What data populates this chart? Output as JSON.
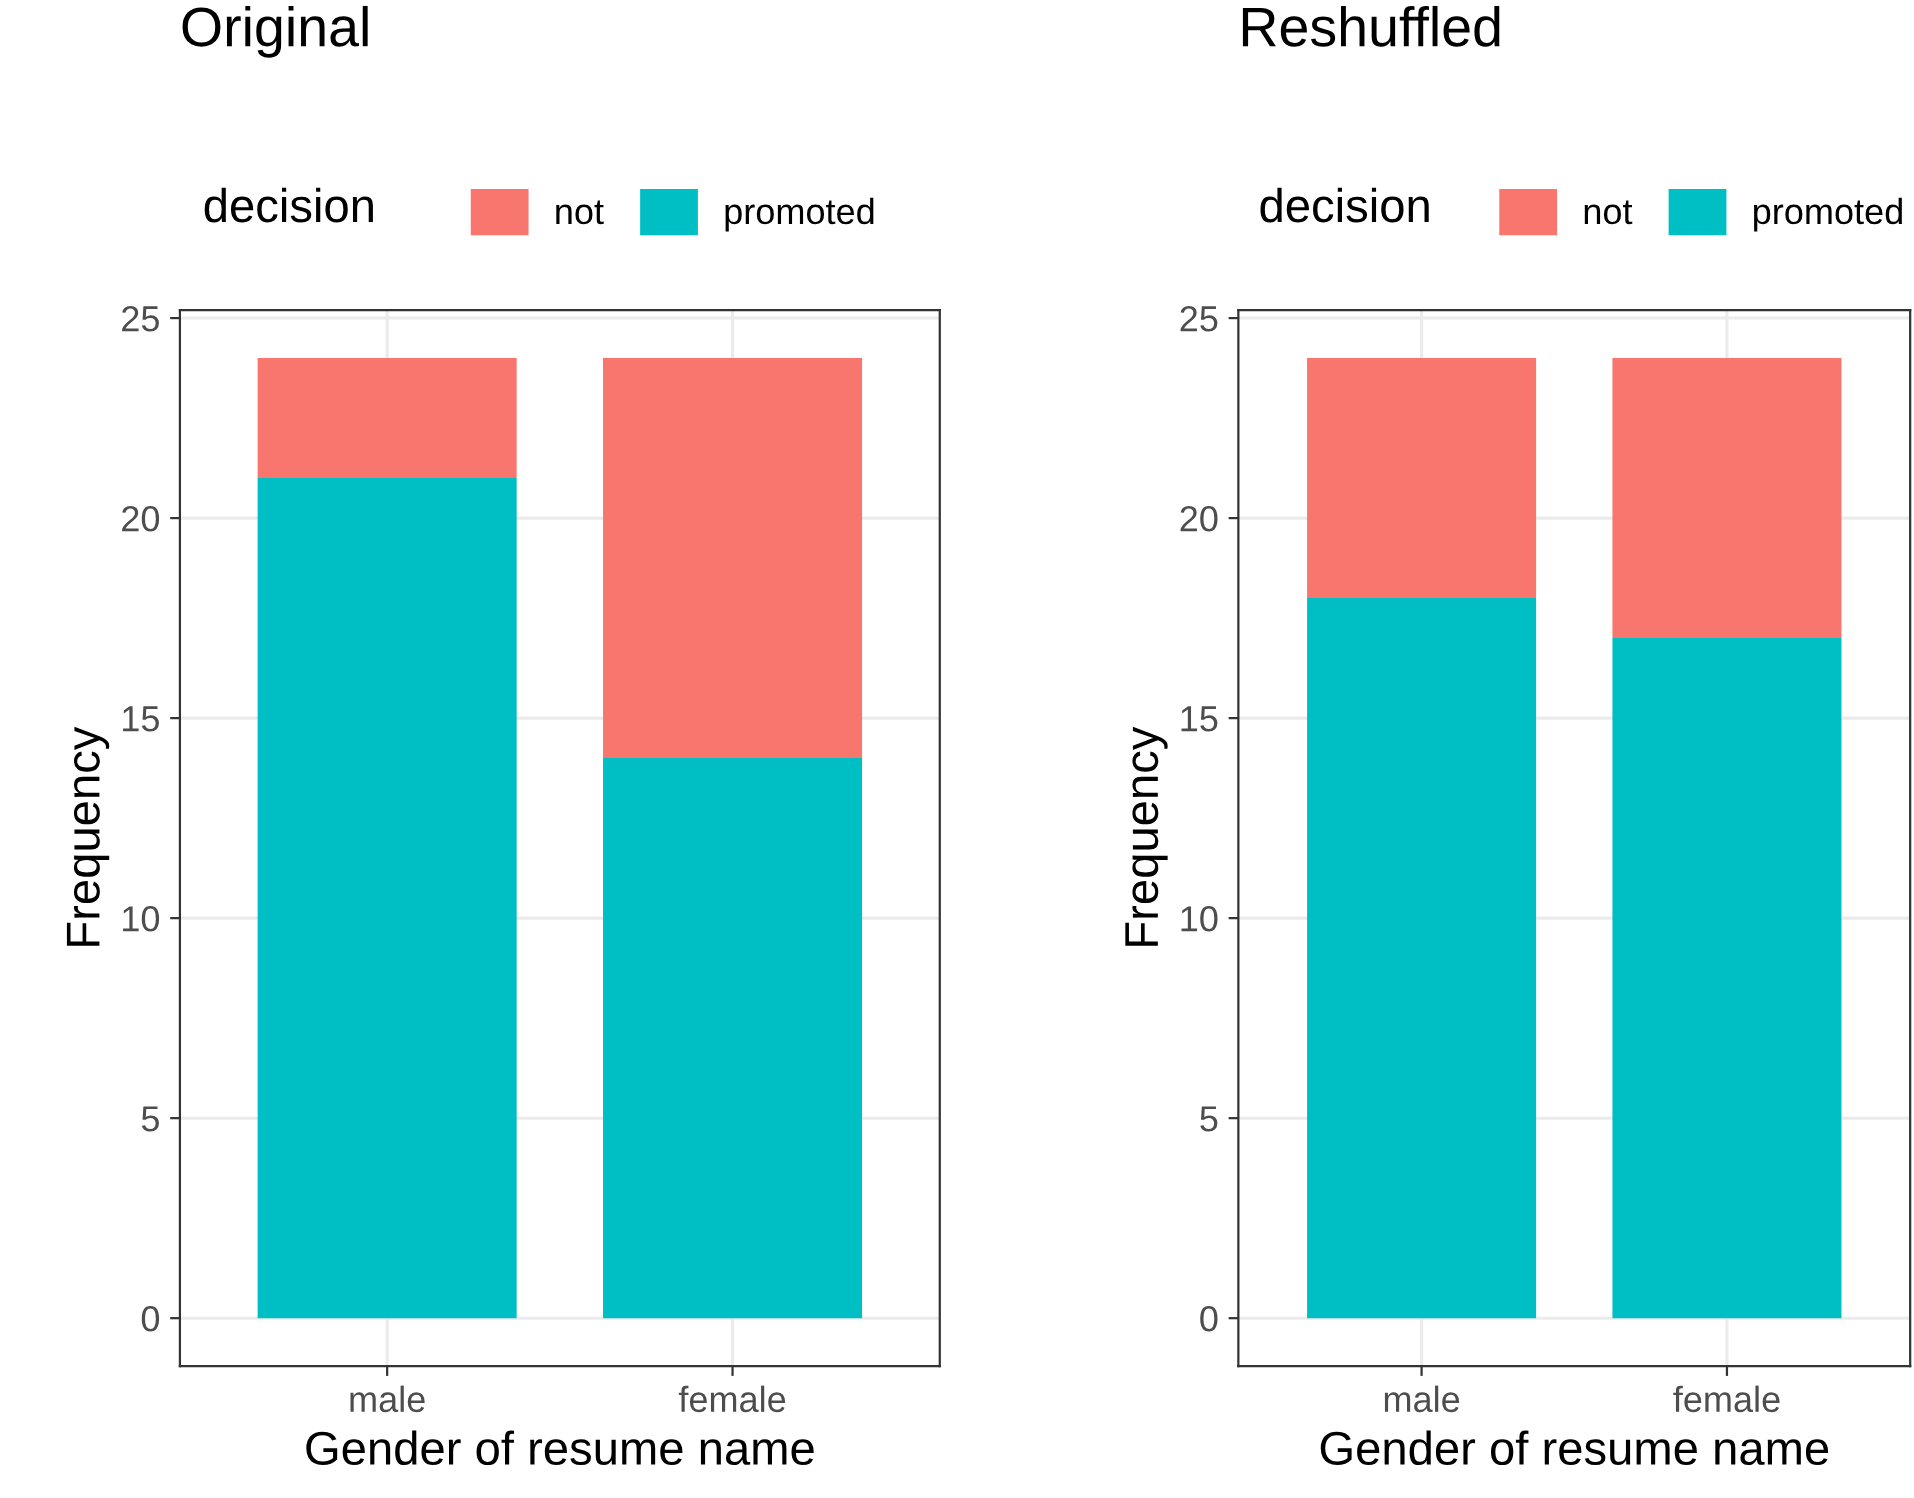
{
  "chart_data": [
    {
      "type": "bar",
      "title": "Original",
      "xlabel": "Gender of resume name",
      "ylabel": "Frequency",
      "legend_title": "decision",
      "categories": [
        "male",
        "female"
      ],
      "stacked": true,
      "legend": "top",
      "grid": true,
      "ylim": [
        -1.2,
        25.2
      ],
      "yticks": [
        0,
        5,
        10,
        15,
        20,
        25
      ],
      "series": [
        {
          "name": "promoted",
          "color": "#00bfc4",
          "values": [
            21,
            14
          ]
        },
        {
          "name": "not",
          "color": "#f8766d",
          "values": [
            3,
            10
          ]
        }
      ]
    },
    {
      "type": "bar",
      "title": "Reshuffled",
      "xlabel": "Gender of resume name",
      "ylabel": "Frequency",
      "legend_title": "decision",
      "categories": [
        "male",
        "female"
      ],
      "stacked": true,
      "legend": "top",
      "grid": true,
      "ylim": [
        -1.2,
        25.2
      ],
      "yticks": [
        0,
        5,
        10,
        15,
        20,
        25
      ],
      "series": [
        {
          "name": "promoted",
          "color": "#00bfc4",
          "values": [
            18,
            17
          ]
        },
        {
          "name": "not",
          "color": "#f8766d",
          "values": [
            6,
            7
          ]
        }
      ]
    }
  ]
}
